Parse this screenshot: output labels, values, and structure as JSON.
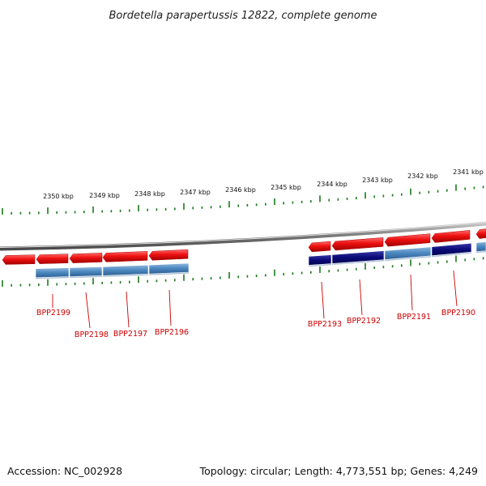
{
  "title": "Bordetella parapertussis 12822, complete genome",
  "accession_label": "Accession: NC_002928",
  "topology_label": "Topology: circular; Length: 4,773,551 bp; Genes: 4,249",
  "scale_ticks": [
    "2350 kbp",
    "2349 kbp",
    "2348 kbp",
    "2347 kbp",
    "2346 kbp",
    "2345 kbp",
    "2344 kbp",
    "2343 kbp",
    "2342 kbp",
    "2341 kbp"
  ],
  "gene_labels": [
    "BPP2199",
    "BPP2198",
    "BPP2197",
    "BPP2196",
    "BPP2193",
    "BPP2192",
    "BPP2191",
    "BPP2190"
  ],
  "colors": {
    "forward_gene": "#ee1111",
    "cds_light": "#4a86bf",
    "cds_dark": "#0a0a78",
    "backbone": "#888888",
    "ticks": "#1a7a1a",
    "gene_label": "#cc0000"
  }
}
